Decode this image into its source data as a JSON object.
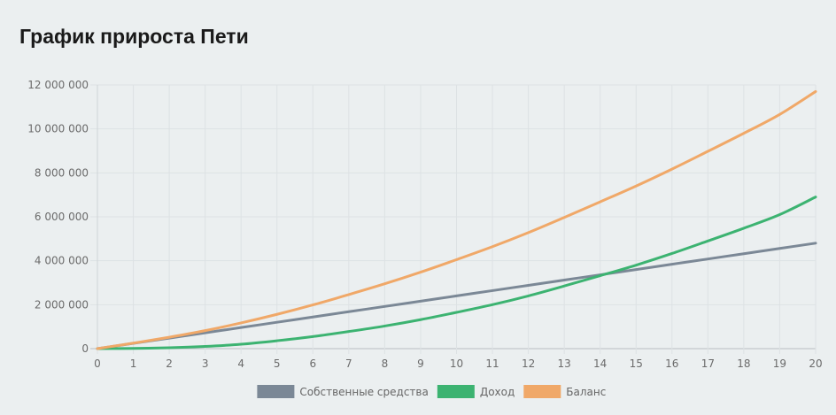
{
  "header": {
    "title": "График прироста Пети"
  },
  "chart_data": {
    "type": "line",
    "title": "",
    "xlabel": "",
    "ylabel": "",
    "x": [
      0,
      1,
      2,
      3,
      4,
      5,
      6,
      7,
      8,
      9,
      10,
      11,
      12,
      13,
      14,
      15,
      16,
      17,
      18,
      19,
      20
    ],
    "xlim": [
      0,
      20
    ],
    "ylim": [
      0,
      12000000
    ],
    "y_ticks": [
      0,
      2000000,
      4000000,
      6000000,
      8000000,
      10000000,
      12000000
    ],
    "y_tick_labels": [
      "0",
      "2 000 000",
      "4 000 000",
      "6 000 000",
      "8 000 000",
      "10 000 000",
      "12 000 000"
    ],
    "x_tick_labels": [
      "0",
      "1",
      "2",
      "3",
      "4",
      "5",
      "6",
      "7",
      "8",
      "9",
      "10",
      "11",
      "12",
      "13",
      "14",
      "15",
      "16",
      "17",
      "18",
      "19",
      "20"
    ],
    "grid": true,
    "legend_position": "bottom",
    "series": [
      {
        "name": "Собственные средства",
        "color": "#7b8896",
        "values": [
          0,
          240000,
          480000,
          720000,
          960000,
          1200000,
          1440000,
          1680000,
          1920000,
          2160000,
          2400000,
          2640000,
          2880000,
          3120000,
          3360000,
          3600000,
          3840000,
          4080000,
          4320000,
          4560000,
          4800000
        ]
      },
      {
        "name": "Доход",
        "color": "#3cb371",
        "values": [
          0,
          10000,
          40000,
          100000,
          200000,
          360000,
          550000,
          780000,
          1030000,
          1320000,
          1650000,
          2000000,
          2400000,
          2850000,
          3320000,
          3800000,
          4330000,
          4900000,
          5480000,
          6100000,
          6900000
        ]
      },
      {
        "name": "Баланс",
        "color": "#f0a868",
        "values": [
          0,
          250000,
          520000,
          820000,
          1170000,
          1560000,
          1990000,
          2460000,
          2950000,
          3480000,
          4050000,
          4640000,
          5280000,
          5970000,
          6680000,
          7400000,
          8170000,
          8980000,
          9800000,
          10660000,
          11700000
        ]
      }
    ]
  }
}
